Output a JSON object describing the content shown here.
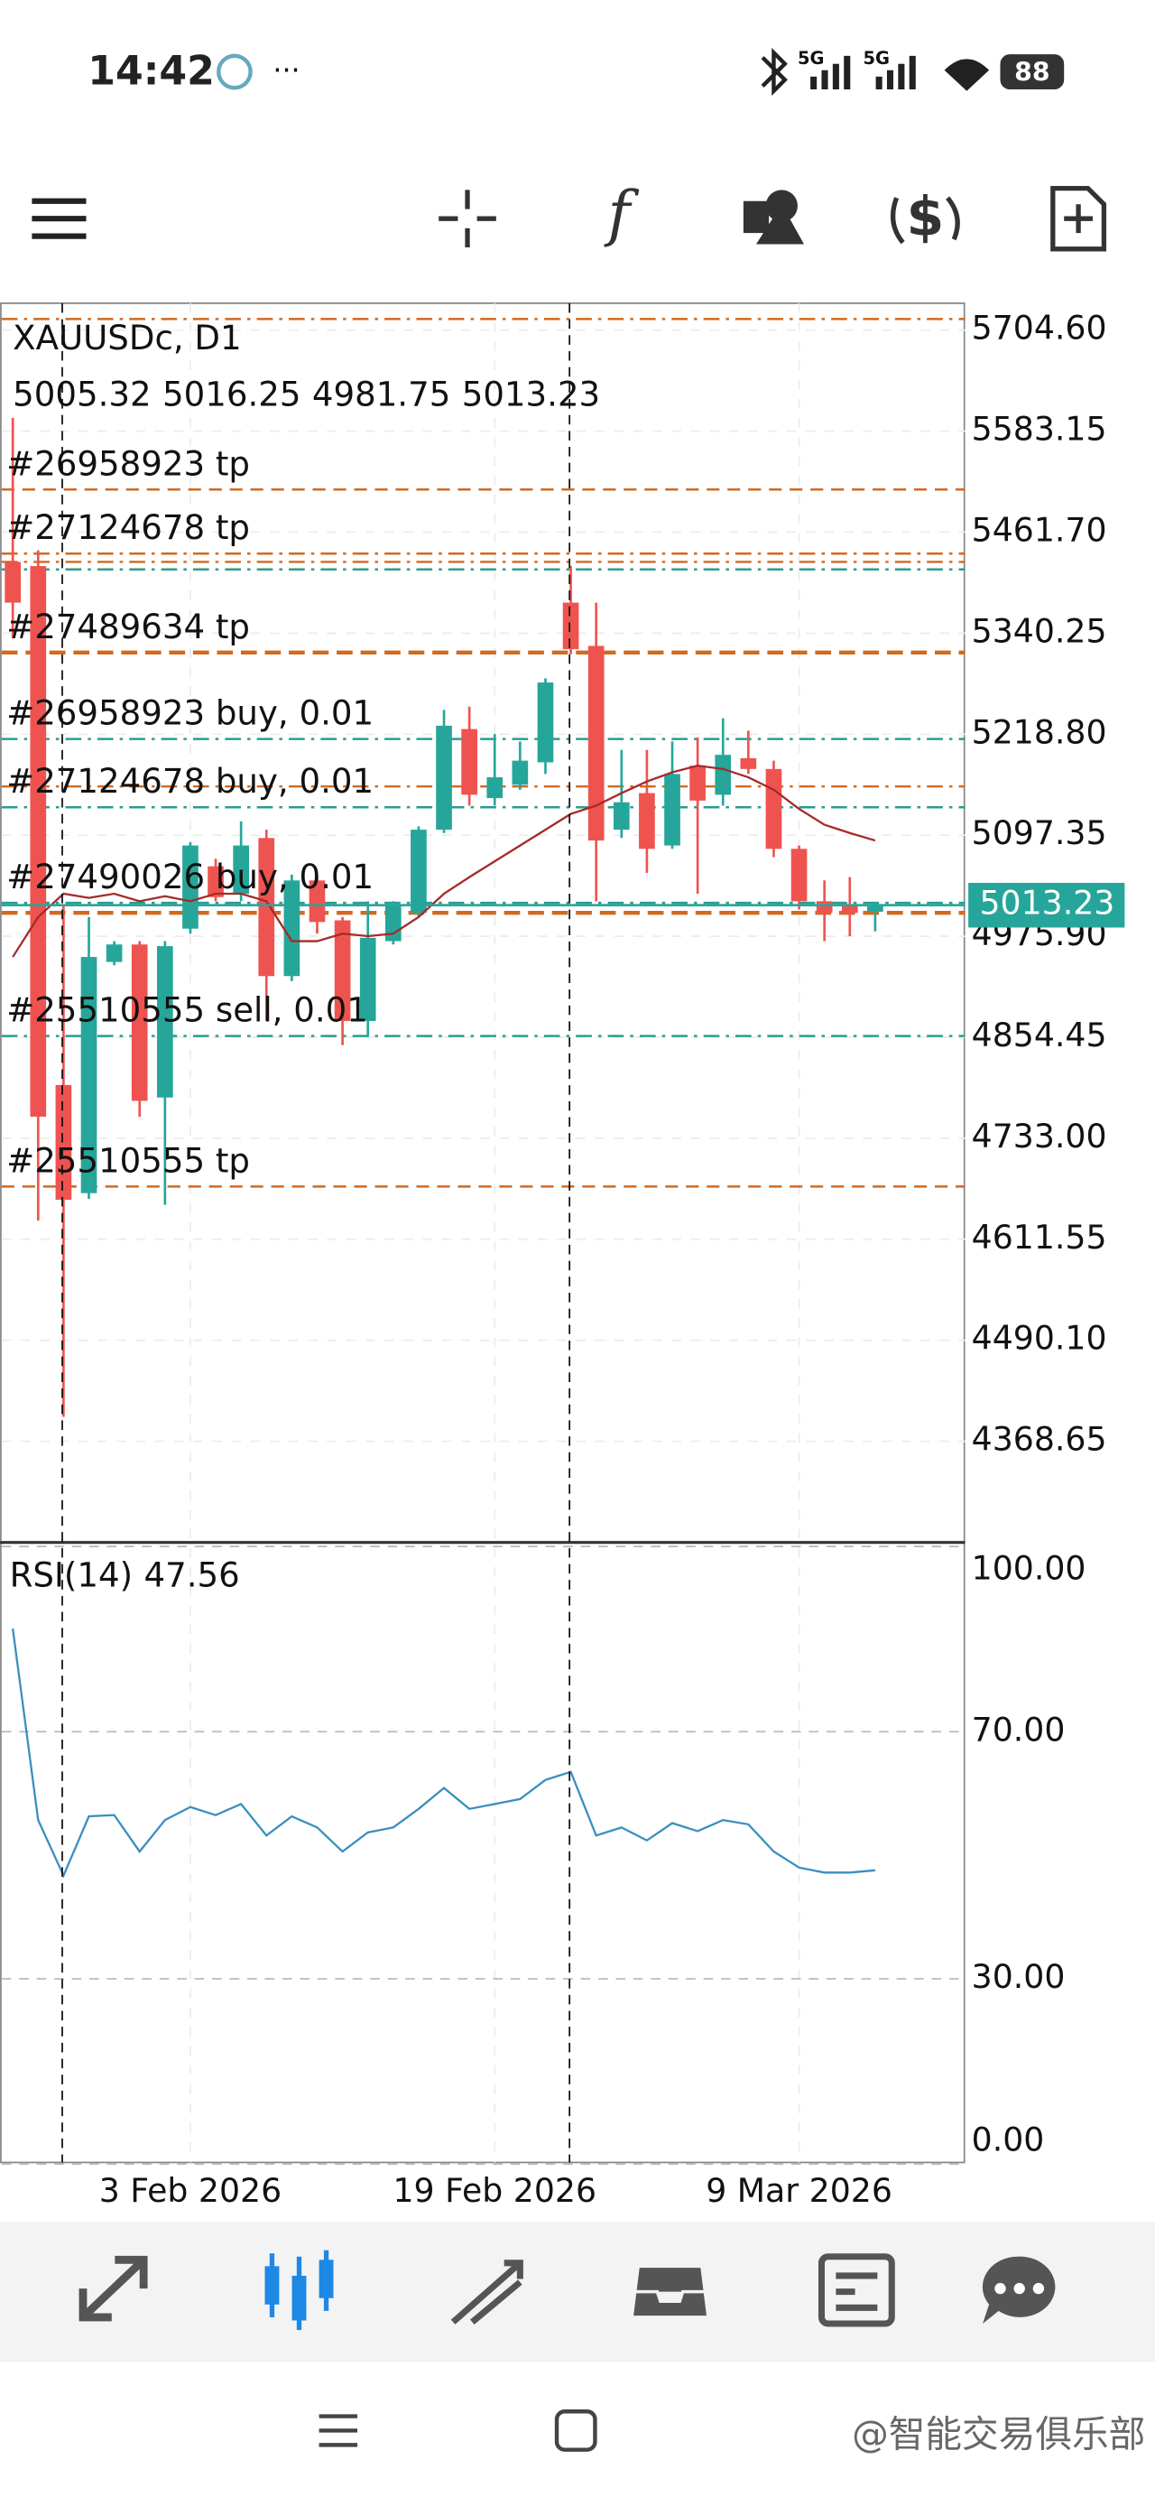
{
  "status_bar": {
    "time": "14:42",
    "network_1": "5G",
    "network_2": "5G",
    "battery": "88"
  },
  "watermark": "@智能交易俱乐部",
  "chart_data": [
    {
      "type": "candlestick",
      "title": "XAUUSDc, D1",
      "categories": [
        null,
        null,
        null,
        null,
        null,
        null,
        null,
        "3 Feb 2026",
        null,
        null,
        null,
        null,
        null,
        null,
        null,
        null,
        null,
        null,
        null,
        "19 Feb 2026",
        null,
        null,
        null,
        null,
        null,
        null,
        null,
        null,
        null,
        null,
        null,
        "9 Mar 2026",
        null,
        null,
        null
      ],
      "open": [
        5426,
        5421,
        4797,
        4667,
        4945,
        4966,
        4782,
        4985,
        5060,
        5027,
        5094,
        4928,
        5043,
        4995,
        4874,
        4970,
        5004,
        5104,
        5225,
        5142,
        5158,
        5185,
        5377,
        5325,
        5104,
        5148,
        5085,
        5181,
        5146,
        5190,
        5177,
        5081,
        5018,
        5014,
        5005.32
      ],
      "high": [
        5599,
        5440,
        5012,
        4999,
        4970,
        4970,
        4970,
        5089,
        5069,
        5114,
        5104,
        5050,
        5047,
        4999,
        5018,
        5018,
        5108,
        5248,
        5252,
        5219,
        5210,
        5286,
        5421,
        5377,
        5200,
        5200,
        5210,
        5215,
        5238,
        5223,
        5187,
        5085,
        5043,
        5047,
        5016.25
      ],
      "low": [
        5334,
        4634,
        4398,
        4660,
        4941,
        4759,
        4653,
        4979,
        5018,
        5018,
        4874,
        4922,
        4979,
        4845,
        4855,
        4966,
        4999,
        5100,
        5133,
        5133,
        5152,
        5171,
        5315,
        5018,
        5094,
        5052,
        5081,
        5027,
        5133,
        5171,
        5071,
        5008,
        4970,
        4976,
        4981.75
      ],
      "close": [
        5377,
        4759,
        4659,
        4951,
        4966,
        4778,
        4964,
        5085,
        5023,
        5085,
        4928,
        5043,
        4993,
        4874,
        4974,
        5012,
        5104,
        5229,
        5146,
        5167,
        5187,
        5281,
        5321,
        5091,
        5137,
        5081,
        5171,
        5139,
        5194,
        5177,
        5081,
        5018,
        5004,
        5004,
        5013.23
      ],
      "up_color": "#26a69a",
      "down_color": "#ef5350",
      "overlay": {
        "color": "#a52a2a",
        "values": [
          4951,
          4999,
          5027,
          5022,
          5027,
          5018,
          5024,
          5018,
          5027,
          5027,
          5018,
          4970,
          4970,
          4979,
          4976,
          4979,
          4999,
          5027,
          5047,
          5066,
          5085,
          5104,
          5123,
          5133,
          5148,
          5162,
          5173,
          5181,
          5177,
          5167,
          5152,
          5129,
          5110,
          5100,
          5091
        ]
      },
      "current_price_color": "#26a69a",
      "order_lines": [
        {
          "value": 5718,
          "color": "#d2691e",
          "dash": "dashdot"
        },
        {
          "value": 5513,
          "color": "#d2691e",
          "dash": "dash",
          "label": "#26958923 tp"
        },
        {
          "value": 5436,
          "color": "#d2691e",
          "dash": "dashdot",
          "label": "#27124678 tp"
        },
        {
          "value": 5426,
          "color": "#d2691e",
          "dash": "dashdot"
        },
        {
          "value": 5417,
          "color": "#2a9d8f",
          "dash": "dashdot"
        },
        {
          "value": 5317,
          "color": "#d2691e",
          "dash": "bold",
          "label": "#27489634 tp"
        },
        {
          "value": 5213,
          "color": "#2a9d8f",
          "dash": "dashdot",
          "label": "#26958923 buy, 0.01"
        },
        {
          "value": 5156,
          "color": "#d2691e",
          "dash": "dashdot"
        },
        {
          "value": 5131,
          "color": "#2a9d8f",
          "dash": "dashdot",
          "label": "#27124678 buy, 0.01"
        },
        {
          "value": 5016,
          "color": "#2a9d8f",
          "dash": "dashdot",
          "label": "#27490026 buy, 0.01"
        },
        {
          "value": 5004,
          "color": "#d2691e",
          "dash": "bold"
        },
        {
          "value": 4856,
          "color": "#2a9d8f",
          "dash": "dashdot",
          "label": "#25510555 sell, 0.01"
        },
        {
          "value": 4675,
          "color": "#d2691e",
          "dash": "dash",
          "label": "#25510555 tp"
        }
      ],
      "ylim": [
        4248,
        5737
      ],
      "yticks": [
        {
          "value": 5704.6,
          "label": "5704.60"
        },
        {
          "value": 5583.15,
          "label": "5583.15"
        },
        {
          "value": 5461.7,
          "label": "5461.70"
        },
        {
          "value": 5340.25,
          "label": "5340.25"
        },
        {
          "value": 5218.8,
          "label": "5218.80"
        },
        {
          "value": 5097.35,
          "label": "5097.35"
        },
        {
          "value": 4975.9,
          "label": "4975.90"
        },
        {
          "value": 4854.45,
          "label": "4854.45"
        },
        {
          "value": 4733,
          "label": "4733.00"
        },
        {
          "value": 4611.55,
          "label": "4611.55"
        },
        {
          "value": 4490.1,
          "label": "4490.10"
        },
        {
          "value": 4368.65,
          "label": "4368.65"
        }
      ],
      "grid": true
    },
    {
      "type": "line",
      "title": "RSI(14)",
      "color": "#3a8fc0",
      "values": [
        86.7,
        55.7,
        46.7,
        56.3,
        56.5,
        50.6,
        55.7,
        57.8,
        56.5,
        58.3,
        53.2,
        56.3,
        54.5,
        50.6,
        53.7,
        54.5,
        57.5,
        60.9,
        57.5,
        58.3,
        59.1,
        62.2,
        63.5,
        53.2,
        54.5,
        52.4,
        55.2,
        53.9,
        55.7,
        55.0,
        50.6,
        48.0,
        47.2,
        47.2,
        47.56
      ],
      "ylim": [
        0,
        100
      ],
      "yticks": [
        {
          "value": 0,
          "label": "0.00"
        },
        {
          "value": 30,
          "label": "30.00"
        },
        {
          "value": 70,
          "label": "70.00"
        },
        {
          "value": 100,
          "label": "100.00"
        }
      ],
      "grid": true
    }
  ]
}
